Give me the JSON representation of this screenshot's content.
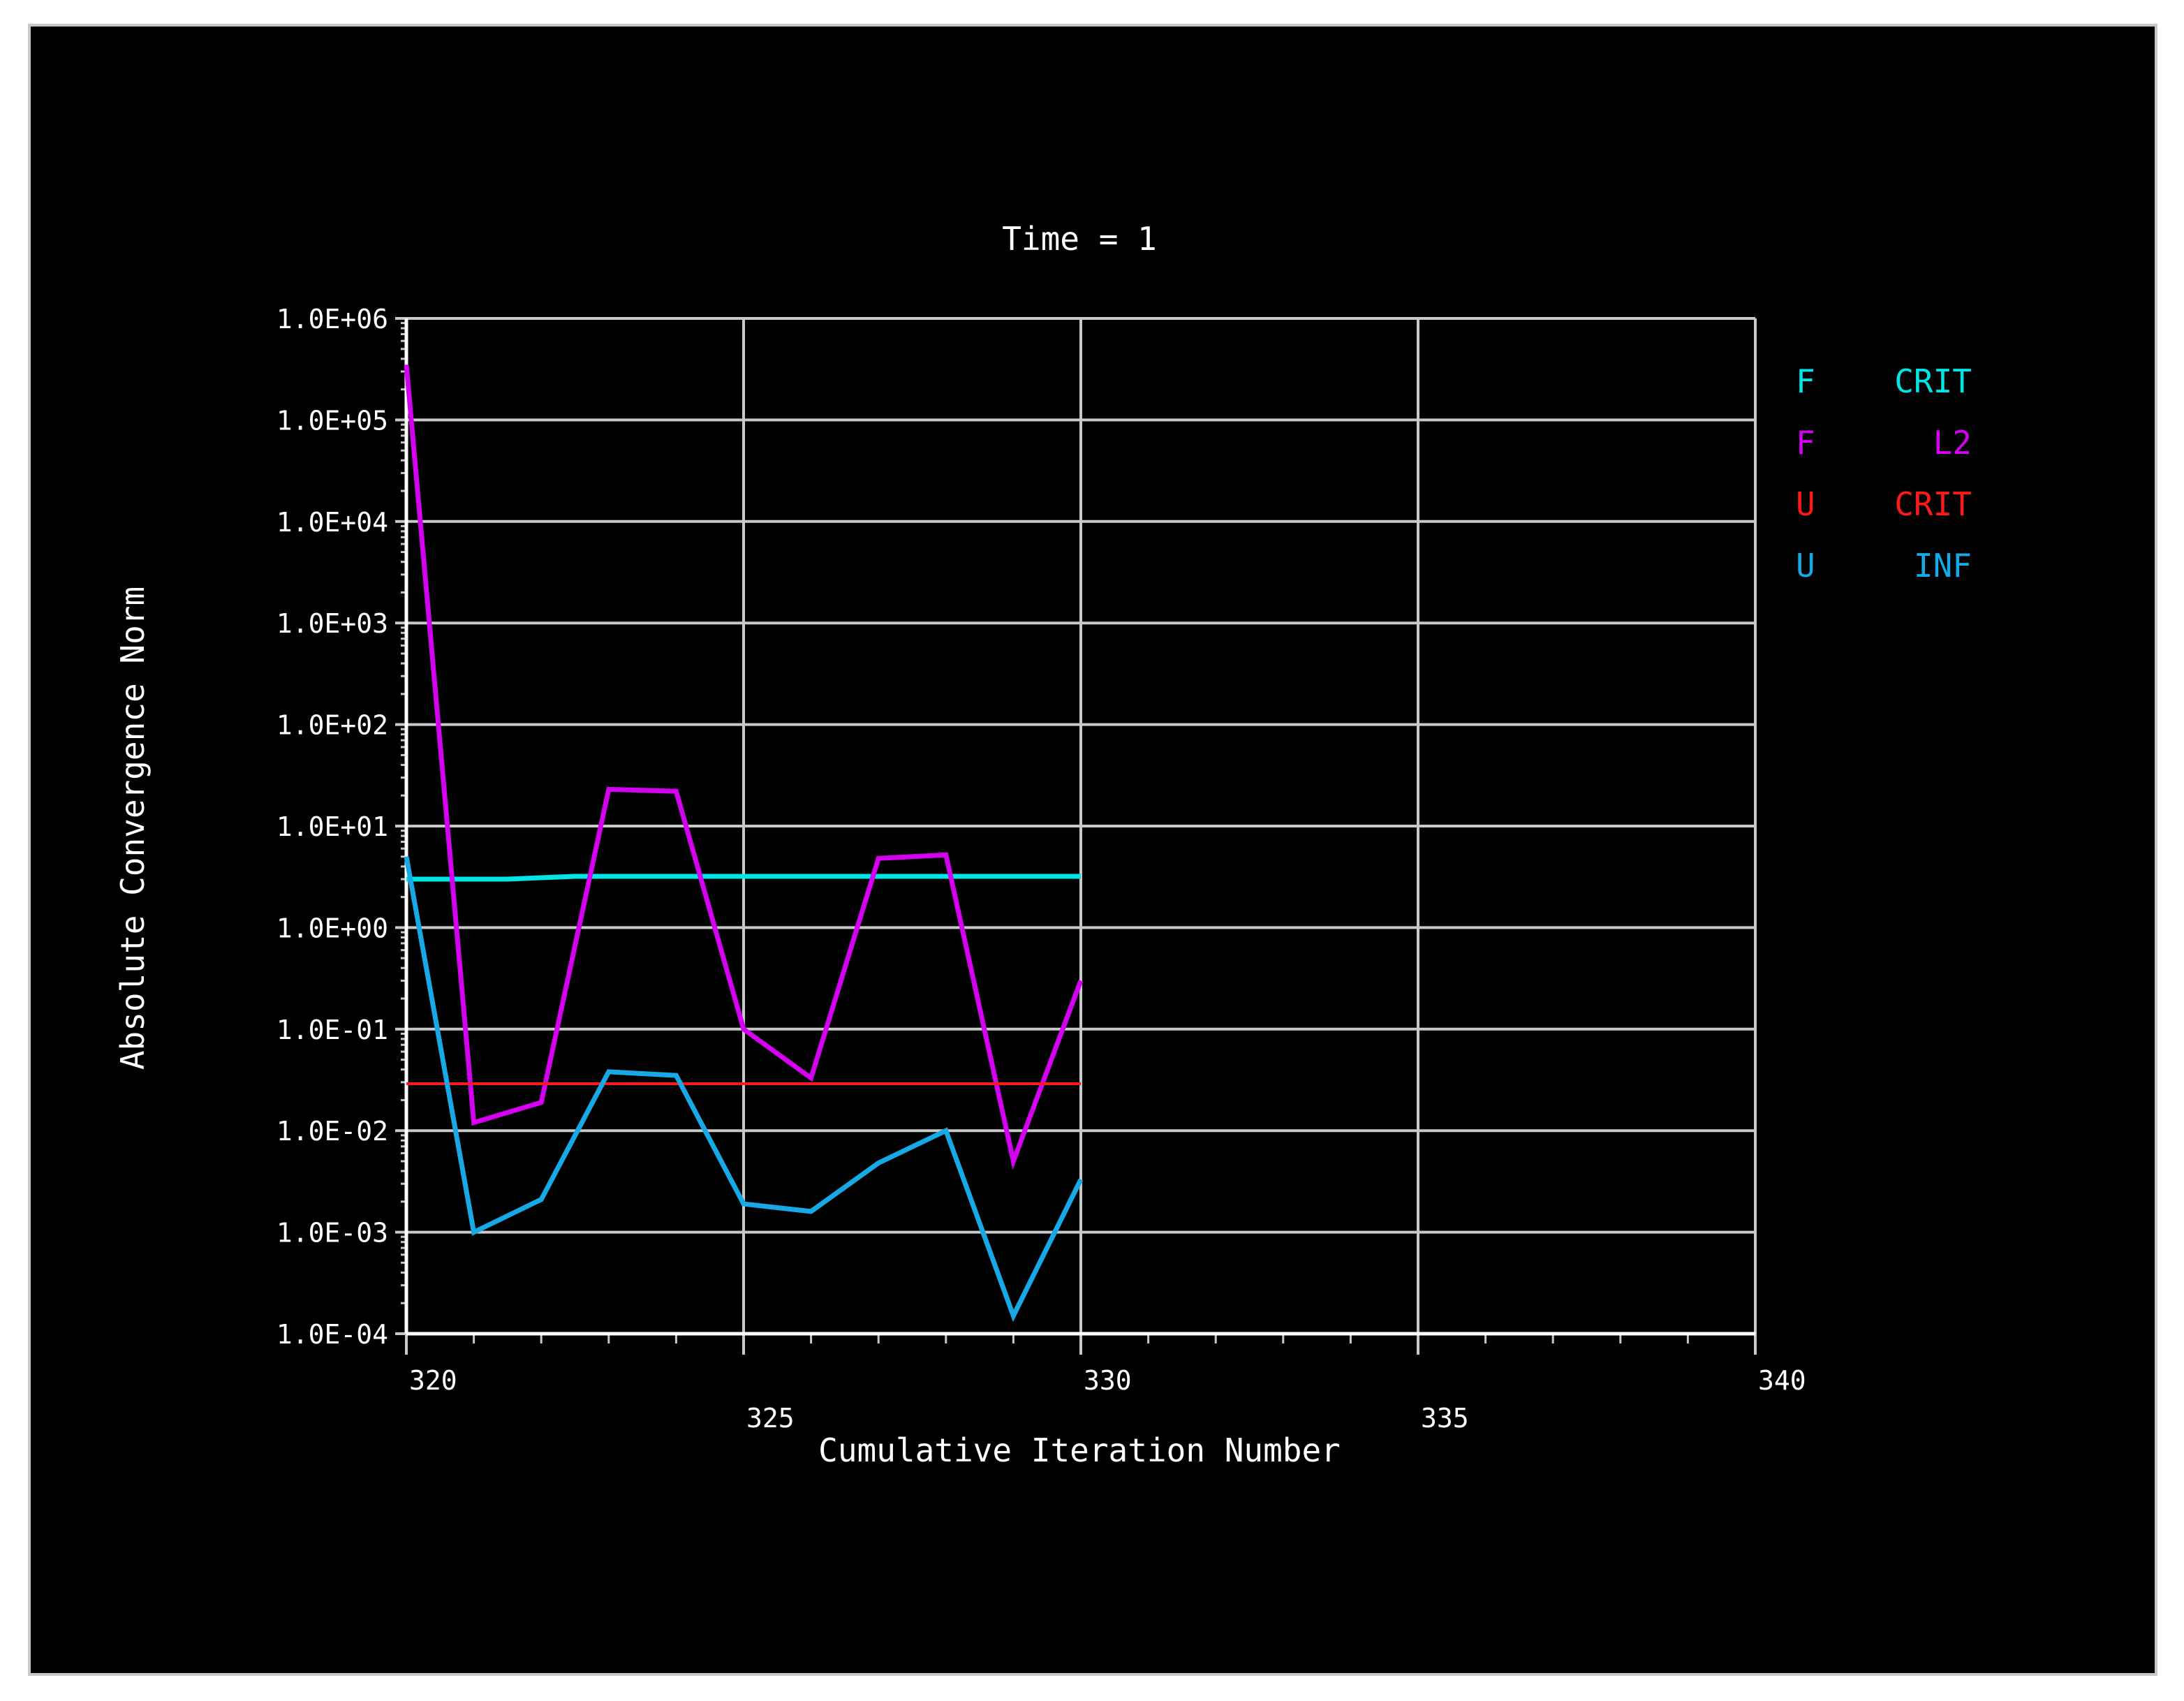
{
  "chart_data": {
    "type": "line",
    "title": "Time = 1",
    "xlabel": "Cumulative Iteration Number",
    "ylabel": "Absolute Convergence Norm",
    "xlim": [
      320,
      340
    ],
    "ylim": [
      0.0001,
      1000000
    ],
    "yscale": "log",
    "grid": true,
    "legend_position": "right",
    "x_ticks": [
      320,
      325,
      330,
      335,
      340
    ],
    "x_tick_labels": [
      "320",
      "325",
      "330",
      "335",
      "340"
    ],
    "y_ticks": [
      1000000,
      100000,
      10000,
      1000,
      100,
      10,
      1,
      0.1,
      0.01,
      0.001,
      0.0001
    ],
    "y_tick_labels": [
      "1.0E+06",
      "1.0E+05",
      "1.0E+04",
      "1.0E+03",
      "1.0E+02",
      "1.0E+01",
      "1.0E+00",
      "1.0E-01",
      "1.0E-02",
      "1.0E-03",
      "1.0E-04"
    ],
    "series": [
      {
        "name": "F CRIT",
        "legend_left": "F",
        "legend_right": "CRIT",
        "color": "#00e5e5",
        "x": [
          320,
          321.5,
          322.5,
          325,
          327,
          330
        ],
        "y": [
          3.0,
          3.0,
          3.2,
          3.2,
          3.2,
          3.2
        ]
      },
      {
        "name": "F L2",
        "legend_left": "F",
        "legend_right": "L2",
        "color": "#d400f0",
        "x": [
          320,
          321,
          322,
          323,
          324,
          325,
          326,
          327,
          328,
          329,
          330
        ],
        "y": [
          350000,
          0.012,
          0.019,
          23,
          22,
          0.1,
          0.033,
          4.8,
          5.2,
          0.005,
          0.3
        ]
      },
      {
        "name": "U CRIT",
        "legend_left": "U",
        "legend_right": "CRIT",
        "color": "#ff1a1a",
        "x": [
          320,
          330
        ],
        "y": [
          0.029,
          0.029
        ]
      },
      {
        "name": "U INF",
        "legend_left": "U",
        "legend_right": "INF",
        "color": "#17a9e6",
        "x": [
          320,
          321,
          322,
          323,
          324,
          325,
          326,
          327,
          328,
          329,
          330
        ],
        "y": [
          5.0,
          0.001,
          0.0021,
          0.038,
          0.035,
          0.0019,
          0.0016,
          0.0048,
          0.01,
          0.00015,
          0.0033
        ]
      }
    ]
  }
}
